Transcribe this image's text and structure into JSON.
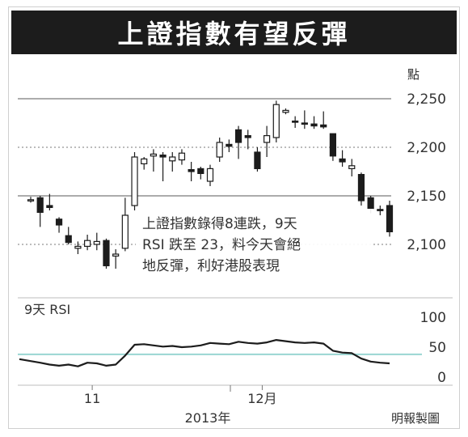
{
  "title": "上證指數有望反彈",
  "annotation": [
    "上證指數錄得8連跌，9天",
    "RSI 跌至 23，料今天會絕",
    "地反彈，利好港股表現"
  ],
  "rsi_label": "9天 RSI",
  "x_ticks": [
    "11",
    "12月"
  ],
  "year_label": "2013年",
  "source": "明報製圖",
  "colors": {
    "title_bg": "#1c1c1c",
    "candle": "#1c1c1c",
    "rsi_line": "#1c1c1c",
    "rsi_reference": "#9ad6d2",
    "grid": "#7a7a7a"
  },
  "chart_data": [
    {
      "type": "candlestick",
      "ylabel": "點",
      "ylim": [
        2085,
        2265
      ],
      "yticks": [
        2100,
        2150,
        2200,
        2250
      ],
      "grid": true,
      "candles": [
        {
          "o": 2146,
          "h": 2149,
          "l": 2143,
          "c": 2146
        },
        {
          "o": 2148,
          "h": 2150,
          "l": 2118,
          "c": 2133
        },
        {
          "o": 2140,
          "h": 2152,
          "l": 2135,
          "c": 2138
        },
        {
          "o": 2126,
          "h": 2128,
          "l": 2112,
          "c": 2120
        },
        {
          "o": 2109,
          "h": 2118,
          "l": 2100,
          "c": 2102
        },
        {
          "o": 2096,
          "h": 2103,
          "l": 2090,
          "c": 2098
        },
        {
          "o": 2098,
          "h": 2110,
          "l": 2094,
          "c": 2104
        },
        {
          "o": 2100,
          "h": 2112,
          "l": 2094,
          "c": 2103
        },
        {
          "o": 2104,
          "h": 2106,
          "l": 2075,
          "c": 2078
        },
        {
          "o": 2088,
          "h": 2095,
          "l": 2075,
          "c": 2090
        },
        {
          "o": 2096,
          "h": 2148,
          "l": 2093,
          "c": 2130
        },
        {
          "o": 2140,
          "h": 2195,
          "l": 2135,
          "c": 2190
        },
        {
          "o": 2183,
          "h": 2190,
          "l": 2177,
          "c": 2188
        },
        {
          "o": 2191,
          "h": 2198,
          "l": 2175,
          "c": 2193
        },
        {
          "o": 2192,
          "h": 2195,
          "l": 2165,
          "c": 2190
        },
        {
          "o": 2186,
          "h": 2195,
          "l": 2175,
          "c": 2190
        },
        {
          "o": 2187,
          "h": 2198,
          "l": 2182,
          "c": 2194
        },
        {
          "o": 2177,
          "h": 2185,
          "l": 2165,
          "c": 2175
        },
        {
          "o": 2178,
          "h": 2180,
          "l": 2167,
          "c": 2173
        },
        {
          "o": 2165,
          "h": 2182,
          "l": 2160,
          "c": 2178
        },
        {
          "o": 2190,
          "h": 2210,
          "l": 2185,
          "c": 2205
        },
        {
          "o": 2203,
          "h": 2208,
          "l": 2195,
          "c": 2201
        },
        {
          "o": 2218,
          "h": 2222,
          "l": 2188,
          "c": 2205
        },
        {
          "o": 2212,
          "h": 2218,
          "l": 2198,
          "c": 2210
        },
        {
          "o": 2195,
          "h": 2200,
          "l": 2175,
          "c": 2178
        },
        {
          "o": 2205,
          "h": 2222,
          "l": 2190,
          "c": 2212
        },
        {
          "o": 2210,
          "h": 2248,
          "l": 2205,
          "c": 2244
        },
        {
          "o": 2236,
          "h": 2240,
          "l": 2234,
          "c": 2238
        },
        {
          "o": 2227,
          "h": 2232,
          "l": 2220,
          "c": 2226
        },
        {
          "o": 2225,
          "h": 2238,
          "l": 2219,
          "c": 2224
        },
        {
          "o": 2224,
          "h": 2232,
          "l": 2219,
          "c": 2222
        },
        {
          "o": 2223,
          "h": 2237,
          "l": 2219,
          "c": 2221
        },
        {
          "o": 2214,
          "h": 2214,
          "l": 2186,
          "c": 2191
        },
        {
          "o": 2188,
          "h": 2197,
          "l": 2180,
          "c": 2185
        },
        {
          "o": 2178,
          "h": 2188,
          "l": 2170,
          "c": 2181
        },
        {
          "o": 2172,
          "h": 2174,
          "l": 2140,
          "c": 2145
        },
        {
          "o": 2148,
          "h": 2150,
          "l": 2132,
          "c": 2137
        },
        {
          "o": 2136,
          "h": 2140,
          "l": 2130,
          "c": 2135
        },
        {
          "o": 2140,
          "h": 2145,
          "l": 2108,
          "c": 2113
        }
      ]
    },
    {
      "type": "line",
      "series": [
        {
          "name": "9天 RSI",
          "values": [
            30,
            24,
            21,
            19,
            21,
            18,
            24,
            23,
            19,
            21,
            36,
            54,
            55,
            53,
            51,
            52,
            50,
            51,
            53,
            57,
            56,
            55,
            59,
            57,
            56,
            58,
            62,
            60,
            58,
            57,
            58,
            56,
            44,
            41,
            40,
            31,
            26,
            24,
            23
          ]
        }
      ],
      "ylim": [
        0,
        100
      ],
      "yticks": [
        0,
        50,
        100
      ],
      "reference_line": 38,
      "x_labels": [
        "11",
        "12月"
      ],
      "x_label_index": [
        6,
        24
      ],
      "xlabel": "2013年"
    }
  ]
}
